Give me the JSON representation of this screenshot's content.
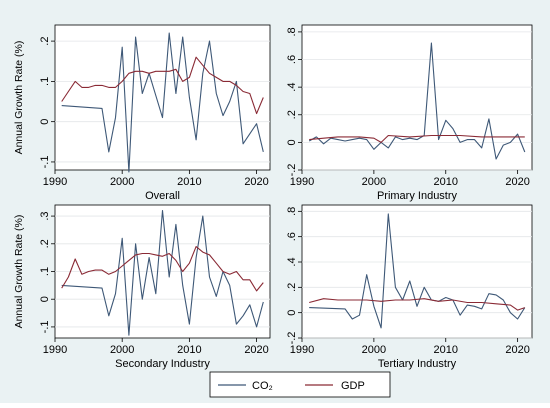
{
  "chart_data": [
    {
      "type": "line",
      "title": "Overall",
      "ylabel": "Annual Growth Rate (%)",
      "ylim": [
        -0.12,
        0.24
      ],
      "yticks": [
        -0.1,
        0,
        0.1,
        0.2
      ],
      "xlim": [
        1990,
        2022
      ],
      "xticks": [
        1990,
        2000,
        2010,
        2020
      ],
      "series": [
        {
          "name": "CO₂",
          "color": "#3e5877",
          "x": [
            1991,
            1997,
            1998,
            1999,
            2000,
            2001,
            2002,
            2003,
            2004,
            2005,
            2006,
            2007,
            2008,
            2009,
            2010,
            2011,
            2012,
            2013,
            2014,
            2015,
            2016,
            2017,
            2018,
            2019,
            2020,
            2021
          ],
          "y": [
            0.04,
            0.033,
            -0.075,
            0.01,
            0.185,
            -0.125,
            0.21,
            0.07,
            0.12,
            0.065,
            0.01,
            0.22,
            0.07,
            0.21,
            0.06,
            -0.045,
            0.12,
            0.2,
            0.07,
            0.015,
            0.05,
            0.1,
            -0.055,
            -0.03,
            -0.005,
            -0.075
          ]
        },
        {
          "name": "GDP",
          "color": "#8a2a35",
          "x": [
            1991,
            1992,
            1993,
            1994,
            1995,
            1996,
            1997,
            1998,
            1999,
            2000,
            2001,
            2002,
            2003,
            2004,
            2005,
            2006,
            2007,
            2008,
            2009,
            2010,
            2011,
            2012,
            2013,
            2014,
            2015,
            2016,
            2017,
            2018,
            2019,
            2020,
            2021
          ],
          "y": [
            0.05,
            0.075,
            0.1,
            0.085,
            0.085,
            0.09,
            0.09,
            0.085,
            0.085,
            0.1,
            0.12,
            0.125,
            0.125,
            0.12,
            0.125,
            0.125,
            0.125,
            0.13,
            0.1,
            0.11,
            0.16,
            0.14,
            0.12,
            0.11,
            0.1,
            0.1,
            0.09,
            0.075,
            0.07,
            0.02,
            0.06
          ]
        }
      ]
    },
    {
      "type": "line",
      "title": "Primary Industry",
      "ylabel": "",
      "ylim": [
        -0.2,
        0.85
      ],
      "yticks": [
        -0.2,
        0,
        0.2,
        0.4,
        0.6,
        0.8
      ],
      "xlim": [
        1990,
        2022
      ],
      "xticks": [
        1990,
        2000,
        2010,
        2020
      ],
      "series": [
        {
          "name": "CO₂",
          "color": "#3e5877",
          "x": [
            1991,
            1992,
            1993,
            1994,
            1995,
            1996,
            1997,
            1998,
            1999,
            2000,
            2001,
            2002,
            2003,
            2004,
            2005,
            2006,
            2007,
            2008,
            2009,
            2010,
            2011,
            2012,
            2013,
            2014,
            2015,
            2016,
            2017,
            2018,
            2019,
            2020,
            2021
          ],
          "y": [
            0.01,
            0.04,
            -0.01,
            0.03,
            0.02,
            0.01,
            0.02,
            0.03,
            0.02,
            -0.05,
            0.0,
            -0.04,
            0.04,
            0.02,
            0.03,
            0.02,
            0.05,
            0.72,
            0.02,
            0.16,
            0.1,
            0.0,
            0.02,
            0.02,
            -0.04,
            0.17,
            -0.12,
            -0.02,
            0.0,
            0.06,
            -0.07
          ]
        },
        {
          "name": "GDP",
          "color": "#8a2a35",
          "x": [
            1991,
            1993,
            1995,
            1998,
            2000,
            2001,
            2002,
            2005,
            2008,
            2010,
            2012,
            2015,
            2018,
            2021
          ],
          "y": [
            0.02,
            0.03,
            0.04,
            0.04,
            0.03,
            0.0,
            0.05,
            0.04,
            0.05,
            0.05,
            0.05,
            0.04,
            0.04,
            0.04
          ]
        }
      ]
    },
    {
      "type": "line",
      "title": "Secondary Industry",
      "ylabel": "Annual Growth Rate (%)",
      "ylim": [
        -0.14,
        0.34
      ],
      "yticks": [
        -0.1,
        0,
        0.1,
        0.2,
        0.3
      ],
      "xlim": [
        1990,
        2022
      ],
      "xticks": [
        1990,
        2000,
        2010,
        2020
      ],
      "series": [
        {
          "name": "CO₂",
          "color": "#3e5877",
          "x": [
            1991,
            1997,
            1998,
            1999,
            2000,
            2001,
            2002,
            2003,
            2004,
            2005,
            2006,
            2007,
            2008,
            2009,
            2010,
            2011,
            2012,
            2013,
            2014,
            2015,
            2016,
            2017,
            2018,
            2019,
            2020,
            2021
          ],
          "y": [
            0.05,
            0.04,
            -0.06,
            0.02,
            0.22,
            -0.13,
            0.2,
            0.0,
            0.15,
            0.02,
            0.32,
            0.08,
            0.27,
            0.05,
            -0.09,
            0.15,
            0.3,
            0.08,
            0.01,
            0.1,
            0.05,
            -0.09,
            -0.06,
            -0.02,
            -0.1,
            -0.01
          ]
        },
        {
          "name": "GDP",
          "color": "#8a2a35",
          "x": [
            1991,
            1992,
            1993,
            1994,
            1995,
            1996,
            1997,
            1998,
            1999,
            2000,
            2001,
            2002,
            2003,
            2004,
            2005,
            2006,
            2007,
            2008,
            2009,
            2010,
            2011,
            2012,
            2013,
            2014,
            2015,
            2016,
            2017,
            2018,
            2019,
            2020,
            2021
          ],
          "y": [
            0.04,
            0.08,
            0.145,
            0.09,
            0.1,
            0.105,
            0.105,
            0.09,
            0.1,
            0.12,
            0.14,
            0.16,
            0.165,
            0.165,
            0.16,
            0.155,
            0.165,
            0.14,
            0.1,
            0.13,
            0.19,
            0.17,
            0.16,
            0.13,
            0.1,
            0.09,
            0.1,
            0.07,
            0.07,
            0.03,
            0.06
          ]
        }
      ]
    },
    {
      "type": "line",
      "title": "Tertiary Industry",
      "ylabel": "",
      "ylim": [
        -0.2,
        0.85
      ],
      "yticks": [
        -0.2,
        0,
        0.2,
        0.4,
        0.6,
        0.8
      ],
      "xlim": [
        1990,
        2022
      ],
      "xticks": [
        1990,
        2000,
        2010,
        2020
      ],
      "series": [
        {
          "name": "CO₂",
          "color": "#3e5877",
          "x": [
            1991,
            1996,
            1997,
            1998,
            1999,
            2000,
            2001,
            2002,
            2003,
            2004,
            2005,
            2006,
            2007,
            2008,
            2009,
            2010,
            2011,
            2012,
            2013,
            2014,
            2015,
            2016,
            2017,
            2018,
            2019,
            2020,
            2021
          ],
          "y": [
            0.04,
            0.03,
            -0.05,
            -0.02,
            0.3,
            0.05,
            -0.12,
            0.78,
            0.2,
            0.1,
            0.25,
            0.05,
            0.2,
            0.1,
            0.09,
            0.12,
            0.1,
            -0.02,
            0.06,
            0.05,
            0.03,
            0.15,
            0.14,
            0.1,
            0.0,
            -0.05,
            0.04
          ]
        },
        {
          "name": "GDP",
          "color": "#8a2a35",
          "x": [
            1991,
            1993,
            1995,
            1997,
            1999,
            2001,
            2003,
            2005,
            2007,
            2009,
            2011,
            2013,
            2015,
            2017,
            2019,
            2020,
            2021
          ],
          "y": [
            0.08,
            0.11,
            0.1,
            0.1,
            0.1,
            0.09,
            0.1,
            0.1,
            0.11,
            0.09,
            0.1,
            0.08,
            0.08,
            0.07,
            0.06,
            0.02,
            0.04
          ]
        }
      ]
    }
  ],
  "legend": {
    "position": "bottom",
    "items": [
      {
        "label": "CO₂",
        "color": "#3e5877"
      },
      {
        "label": "GDP",
        "color": "#8a2a35"
      }
    ]
  }
}
